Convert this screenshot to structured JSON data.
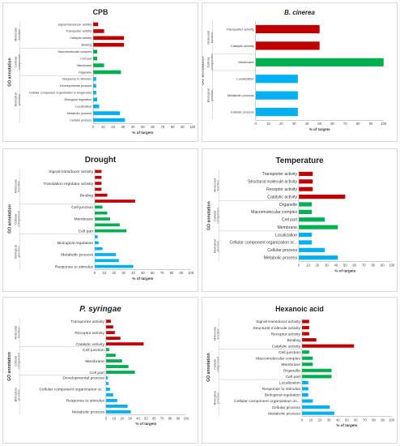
{
  "chart_data": [
    {
      "type": "bar",
      "orientation": "horizontal",
      "title": "CPB",
      "title_italic": false,
      "xlabel": "% of targets",
      "ylabel": "GO annotation",
      "xlim": [
        0,
        100
      ],
      "xticks": [
        0,
        10,
        20,
        30,
        40,
        50,
        60,
        70,
        80,
        90,
        100
      ],
      "grid": false,
      "groups": [
        {
          "name": "Molecular function",
          "color": "#c00000",
          "categories": [
            "Signal transducer activity",
            "Transporter activity",
            "Catalytic activity",
            "Binding"
          ],
          "values": [
            5,
            11,
            31,
            31
          ]
        },
        {
          "name": "Cellular component",
          "color": "#00b050",
          "categories": [
            "Macromolecular complex",
            "Cell part",
            "Membrane",
            "Organelle"
          ],
          "values": [
            4,
            4,
            11,
            28
          ]
        },
        {
          "name": "Biological process",
          "color": "#00b0f0",
          "categories": [
            "Response to stimulus",
            "Developmental process",
            "Cellular component organisation or biogenesis",
            "Biological regulation",
            "Localization",
            "Metabolic process",
            "Cellular process"
          ],
          "values": [
            3,
            3,
            3,
            4,
            6,
            27,
            32
          ]
        }
      ]
    },
    {
      "type": "bar",
      "orientation": "horizontal",
      "title": "B. cinerea",
      "title_italic": true,
      "xlabel": "% of targets",
      "ylabel": "GO annotation",
      "xlim": [
        0,
        100
      ],
      "xticks": [
        0,
        10,
        20,
        30,
        40,
        50,
        60,
        70,
        80,
        90,
        100
      ],
      "grid": false,
      "groups": [
        {
          "name": "Molecular function",
          "color": "#c00000",
          "categories": [
            "Transporter activity",
            "Catalytic activity"
          ],
          "values": [
            50,
            50
          ]
        },
        {
          "name": "Cellular component",
          "color": "#00b050",
          "categories": [
            "Membrane"
          ],
          "values": [
            100
          ]
        },
        {
          "name": "Biological process",
          "color": "#00b0f0",
          "categories": [
            "Localization",
            "Metabolic process",
            "Cellular process"
          ],
          "values": [
            33,
            33,
            33
          ]
        }
      ]
    },
    {
      "type": "bar",
      "orientation": "horizontal",
      "title": "Drought",
      "title_italic": false,
      "xlabel": "% of targets",
      "ylabel": "GO annotation",
      "xlim": [
        0,
        100
      ],
      "xticks": [
        0,
        10,
        20,
        30,
        40,
        50,
        60,
        70,
        80,
        90,
        100
      ],
      "grid": false,
      "groups": [
        {
          "name": "Molecular function",
          "color": "#c00000",
          "categories": [
            "Signal transducer activity",
            "",
            "Translation regulator activity",
            "",
            "Binding",
            ""
          ],
          "values": [
            7,
            7,
            7,
            7,
            13,
            42
          ]
        },
        {
          "name": "Cellular component",
          "color": "#00b050",
          "categories": [
            "Cell junction",
            "",
            "Membrane",
            "",
            "Cell part"
          ],
          "values": [
            8,
            13,
            16,
            26,
            33
          ]
        },
        {
          "name": "Biological process",
          "color": "#00b0f0",
          "categories": [
            "",
            "Biological regulation",
            "",
            "Metabolic process",
            "",
            "Response to stimulus"
          ],
          "values": [
            3,
            4,
            8,
            22,
            25,
            40
          ]
        }
      ]
    },
    {
      "type": "bar",
      "orientation": "horizontal",
      "title": "Temperature",
      "title_italic": false,
      "xlabel": "% of targets",
      "ylabel": "GO annotation",
      "xlim": [
        0,
        100
      ],
      "xticks": [
        0,
        10,
        20,
        30,
        40,
        50,
        60,
        70,
        80,
        90,
        100
      ],
      "grid": false,
      "groups": [
        {
          "name": "Molecular function",
          "color": "#c00000",
          "categories": [
            "Transporter activity",
            "Structural molecule activity",
            "Receptor activity",
            "Catalytic activity"
          ],
          "values": [
            15,
            15,
            15,
            50
          ]
        },
        {
          "name": "Cellular component",
          "color": "#00b050",
          "categories": [
            "Organelle",
            "Macromolecular complex",
            "Cell part",
            "Membrane"
          ],
          "values": [
            14,
            14,
            28,
            42
          ]
        },
        {
          "name": "Biological process",
          "color": "#00b0f0",
          "categories": [
            "Localization",
            "Cellular component organization or...",
            "Cellular process",
            "Metabolic process"
          ],
          "values": [
            14,
            14,
            28,
            42
          ]
        }
      ]
    },
    {
      "type": "bar",
      "orientation": "horizontal",
      "title": "P. syringae",
      "title_italic": true,
      "xlabel": "% of targets",
      "ylabel": "GO annotation",
      "xlim": [
        0,
        100
      ],
      "xticks": [
        0,
        10,
        20,
        30,
        40,
        50,
        60,
        70,
        80,
        90,
        100
      ],
      "grid": false,
      "groups": [
        {
          "name": "Molecular function",
          "color": "#c00000",
          "categories": [
            "Transporter activity",
            "",
            "Receptor activity",
            "",
            "Catalytic activity"
          ],
          "values": [
            6,
            9,
            11,
            18,
            47
          ]
        },
        {
          "name": "Cellular component",
          "color": "#00b050",
          "categories": [
            "Cell junction",
            "",
            "Membrane",
            "",
            "Cell part"
          ],
          "values": [
            4,
            12,
            20,
            28,
            36
          ]
        },
        {
          "name": "Biological process",
          "color": "#00b0f0",
          "categories": [
            "Developmental process",
            "",
            "Cellular component organization or...",
            "",
            "Response to stimulus",
            "",
            "Metabolic process"
          ],
          "values": [
            2,
            3,
            5,
            9,
            14,
            27,
            31
          ]
        }
      ]
    },
    {
      "type": "bar",
      "orientation": "horizontal",
      "title": "Hexanoic acid",
      "title_italic": false,
      "xlabel": "% of targets",
      "ylabel": "GO annotation",
      "xlim": [
        0,
        100
      ],
      "xticks": [
        0,
        10,
        20,
        30,
        40,
        50,
        60,
        70,
        80,
        90,
        100
      ],
      "grid": false,
      "groups": [
        {
          "name": "Molecular function",
          "color": "#c00000",
          "categories": [
            "Signal transducer activity",
            "Structural molecule activity",
            "Receptor activity",
            "Binding",
            "Catalytic activity"
          ],
          "values": [
            8,
            8,
            8,
            16,
            58
          ]
        },
        {
          "name": "Cellular component",
          "color": "#00b050",
          "categories": [
            "Cell junction",
            "Macromolecular complex",
            "Membrane",
            "Organelle",
            "Cell part"
          ],
          "values": [
            8,
            12,
            12,
            33,
            33
          ]
        },
        {
          "name": "Biological process",
          "color": "#00b0f0",
          "categories": [
            "Localization",
            "Response to stimulus",
            "Biological regulation",
            "Cellular component organization on...",
            "Cellular process",
            "Metabolic process"
          ],
          "values": [
            7,
            7,
            7,
            12,
            31,
            36
          ]
        }
      ]
    }
  ]
}
